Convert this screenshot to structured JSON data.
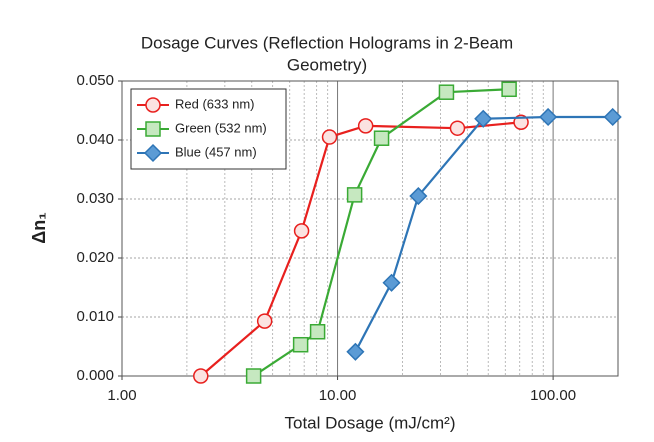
{
  "chart_data": {
    "type": "line",
    "title": [
      "Dosage Curves (Reflection Holograms in 2-Beam",
      "Geometry)"
    ],
    "xlabel": "Total Dosage (mJ/cm²)",
    "ylabel": "Δn₁",
    "xscale": "log",
    "grid": true,
    "legend": "upper left",
    "xlim": [
      1,
      200
    ],
    "ylim": [
      0,
      0.05
    ],
    "xticks": [
      {
        "value": 1,
        "label": "1.00"
      },
      {
        "value": 10,
        "label": "10.00"
      },
      {
        "value": 100,
        "label": "100.00"
      }
    ],
    "yticks": [
      {
        "value": 0,
        "label": "0.000"
      },
      {
        "value": 0.01,
        "label": "0.010"
      },
      {
        "value": 0.02,
        "label": "0.020"
      },
      {
        "value": 0.03,
        "label": "0.030"
      },
      {
        "value": 0.04,
        "label": "0.040"
      },
      {
        "value": 0.05,
        "label": "0.050"
      }
    ],
    "series": [
      {
        "name": "Red (633 nm)",
        "color": "#e8201e",
        "fill": "#fbe3e1",
        "marker": "circle",
        "x": [
          2.32,
          4.59,
          6.81,
          9.18,
          13.5,
          36,
          71
        ],
        "values": [
          0,
          0.0093,
          0.0246,
          0.0405,
          0.0424,
          0.042,
          0.043
        ]
      },
      {
        "name": "Green (532 nm)",
        "color": "#3aaa35",
        "fill": "#c6e8c0",
        "marker": "square",
        "x": [
          4.08,
          6.74,
          8.08,
          12.0,
          16.0,
          32,
          62.5
        ],
        "values": [
          0,
          0.0053,
          0.0075,
          0.0307,
          0.0403,
          0.0481,
          0.0486
        ]
      },
      {
        "name": "Blue (457 nm)",
        "color": "#2e75b6",
        "fill": "#5b9bd5",
        "marker": "diamond",
        "x": [
          12.1,
          17.8,
          23.7,
          47.4,
          94.8,
          189
        ],
        "values": [
          0.0041,
          0.0158,
          0.0305,
          0.0436,
          0.0439,
          0.0439
        ]
      }
    ]
  }
}
